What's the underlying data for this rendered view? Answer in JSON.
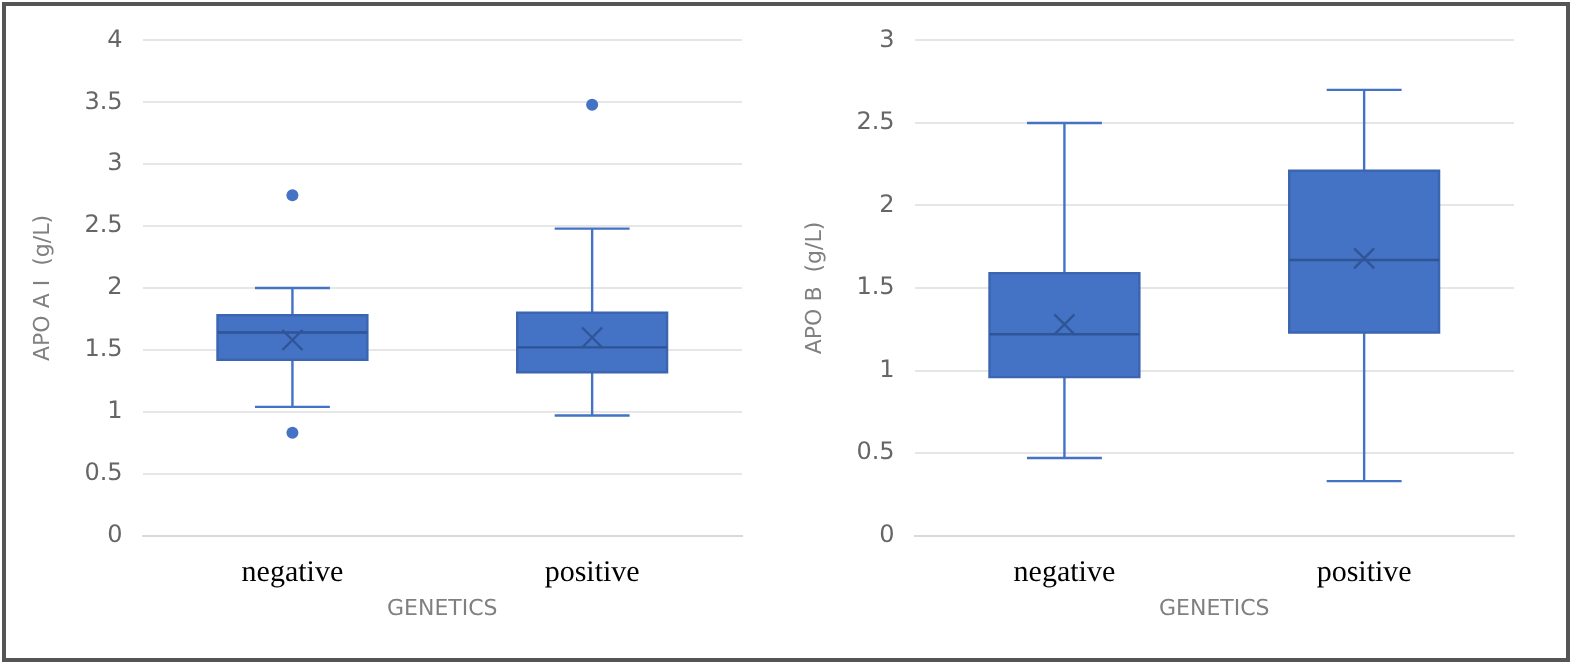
{
  "chart_data": [
    {
      "type": "box",
      "categories": [
        "negative",
        "positive"
      ],
      "xlabel": "GENETICS",
      "ylabel": "APO A I  (g/L)",
      "ylim": [
        0,
        4
      ],
      "yticks": [
        0,
        0.5,
        1,
        1.5,
        2,
        2.5,
        3,
        3.5,
        4
      ],
      "grid": "y",
      "color": "#4472c4",
      "boxes": [
        {
          "low": 1.04,
          "q1": 1.42,
          "median": 1.64,
          "q3": 1.78,
          "high": 2.0,
          "mean": 1.58,
          "outliers": [
            2.75,
            0.83
          ]
        },
        {
          "low": 0.97,
          "q1": 1.32,
          "median": 1.52,
          "q3": 1.8,
          "high": 2.48,
          "mean": 1.6,
          "outliers": [
            3.48
          ]
        }
      ]
    },
    {
      "type": "box",
      "categories": [
        "negative",
        "positive"
      ],
      "xlabel": "GENETICS",
      "ylabel": "APO B  (g/L)",
      "ylim": [
        0,
        3
      ],
      "yticks": [
        0,
        0.5,
        1,
        1.5,
        2,
        2.5,
        3
      ],
      "grid": "y",
      "color": "#4472c4",
      "boxes": [
        {
          "low": 0.47,
          "q1": 0.96,
          "median": 1.22,
          "q3": 1.59,
          "high": 2.5,
          "mean": 1.28
        },
        {
          "low": 0.33,
          "q1": 1.23,
          "median": 1.67,
          "q3": 2.21,
          "high": 2.7,
          "mean": 1.68
        }
      ]
    }
  ]
}
